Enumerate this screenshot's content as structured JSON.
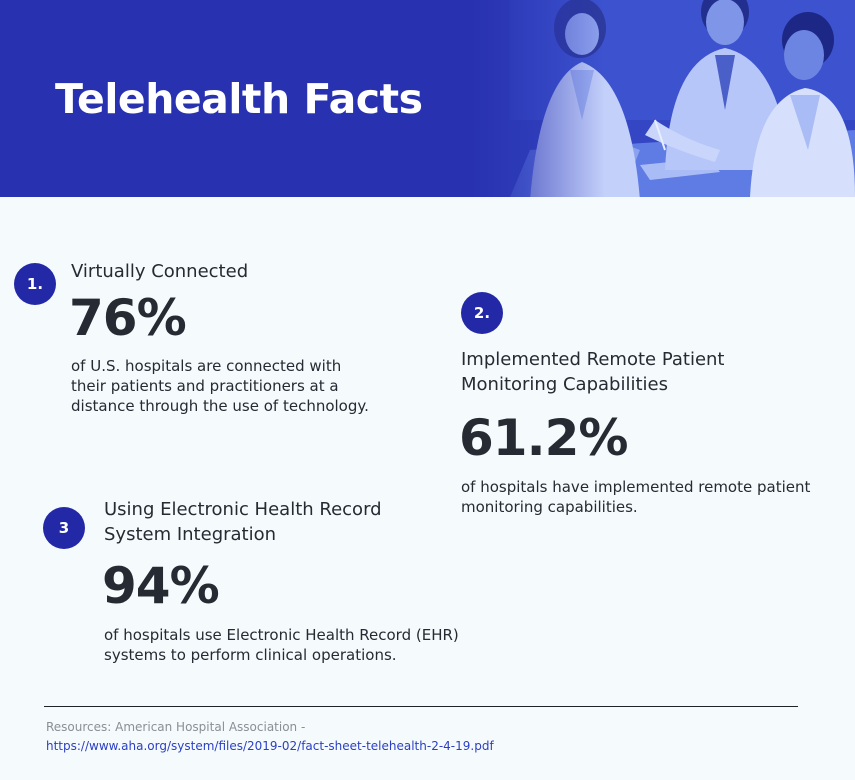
{
  "header": {
    "title": "Telehealth Facts"
  },
  "facts": [
    {
      "number": "1.",
      "heading": "Virtually Connected",
      "value": "76%",
      "description": "of U.S. hospitals are connected with their patients and practitioners at a distance through the use of technology."
    },
    {
      "number": "2.",
      "heading": "Implemented Remote Patient Monitoring Capabilities",
      "value": "61.2%",
      "description": "of hospitals have implemented remote patient monitoring capabilities."
    },
    {
      "number": "3",
      "heading": "Using Electronic Health Record System Integration",
      "value": "94%",
      "description": "of hospitals use Electronic Health Record (EHR) systems to perform clinical operations."
    }
  ],
  "footer": {
    "resources_label": "Resources: American Hospital Association -",
    "resources_url": "https://www.aha.org/system/files/2019-02/fact-sheet-telehealth-2-4-19.pdf"
  },
  "colors": {
    "header_bg": "#2832b0",
    "badge_bg": "#2329a6",
    "page_bg": "#f5fafd",
    "text": "#262b33",
    "link": "#2b3fc4"
  }
}
